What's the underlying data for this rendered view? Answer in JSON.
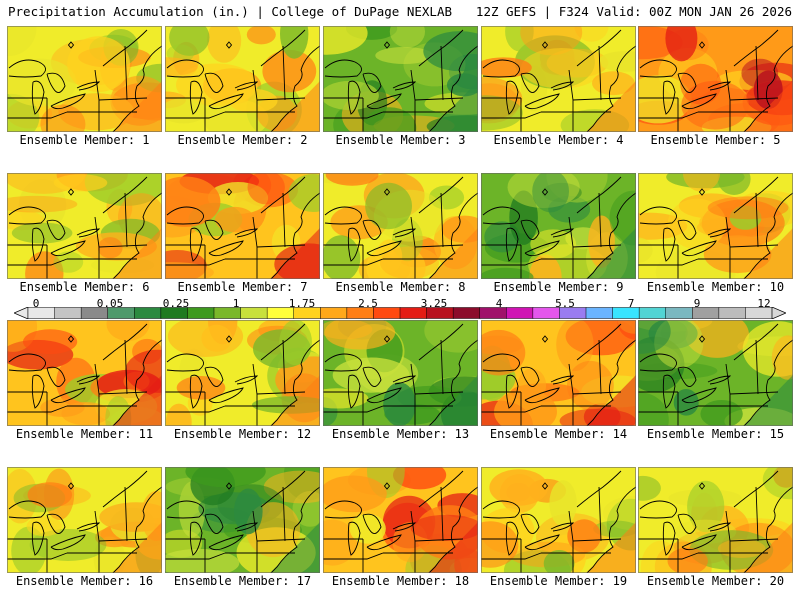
{
  "header": {
    "left": "Precipitation Accumulation (in.) | College of DuPage NEXLAB",
    "right": "12Z GEFS | F324 Valid: 00Z MON JAN 26 2026"
  },
  "panels": [
    {
      "label": "Ensemble Member: 1",
      "palette": "yellow"
    },
    {
      "label": "Ensemble Member: 2",
      "palette": "yellow"
    },
    {
      "label": "Ensemble Member: 3",
      "palette": "green"
    },
    {
      "label": "Ensemble Member: 4",
      "palette": "yellow"
    },
    {
      "label": "Ensemble Member: 5",
      "palette": "red"
    },
    {
      "label": "Ensemble Member: 6",
      "palette": "yellow"
    },
    {
      "label": "Ensemble Member: 7",
      "palette": "orange"
    },
    {
      "label": "Ensemble Member: 8",
      "palette": "yellow"
    },
    {
      "label": "Ensemble Member: 9",
      "palette": "green"
    },
    {
      "label": "Ensemble Member: 10",
      "palette": "yellow"
    },
    {
      "label": "Ensemble Member: 11",
      "palette": "orange"
    },
    {
      "label": "Ensemble Member: 12",
      "palette": "yellow"
    },
    {
      "label": "Ensemble Member: 13",
      "palette": "green"
    },
    {
      "label": "Ensemble Member: 14",
      "palette": "orange"
    },
    {
      "label": "Ensemble Member: 15",
      "palette": "green"
    },
    {
      "label": "Ensemble Member: 16",
      "palette": "yellow"
    },
    {
      "label": "Ensemble Member: 17",
      "palette": "green"
    },
    {
      "label": "Ensemble Member: 18",
      "palette": "orange"
    },
    {
      "label": "Ensemble Member: 19",
      "palette": "yellow"
    },
    {
      "label": "Ensemble Member: 20",
      "palette": "yellow"
    }
  ],
  "legend": {
    "ticks": [
      "0",
      "0.05",
      "0.25",
      "1",
      "1.75",
      "2.5",
      "3.25",
      "4",
      "5.5",
      "7",
      "9",
      "12"
    ],
    "colors": [
      "#e8e8e8",
      "#c4c4c4",
      "#8a8a8a",
      "#4f9a6b",
      "#2c8a40",
      "#1f7a20",
      "#3e9a1e",
      "#7ab82a",
      "#c8e03c",
      "#ffff3a",
      "#ffd21e",
      "#ffa81a",
      "#ff7e14",
      "#ff4a10",
      "#e41c14",
      "#b8101e",
      "#8c0c2c",
      "#a0106a",
      "#d014b4",
      "#e456ec",
      "#9a7cf0",
      "#6ab4ff",
      "#38e4ff",
      "#52d4d4",
      "#7ab8c0",
      "#a0a0a0",
      "#bcbcbc",
      "#d8d8d8"
    ]
  }
}
